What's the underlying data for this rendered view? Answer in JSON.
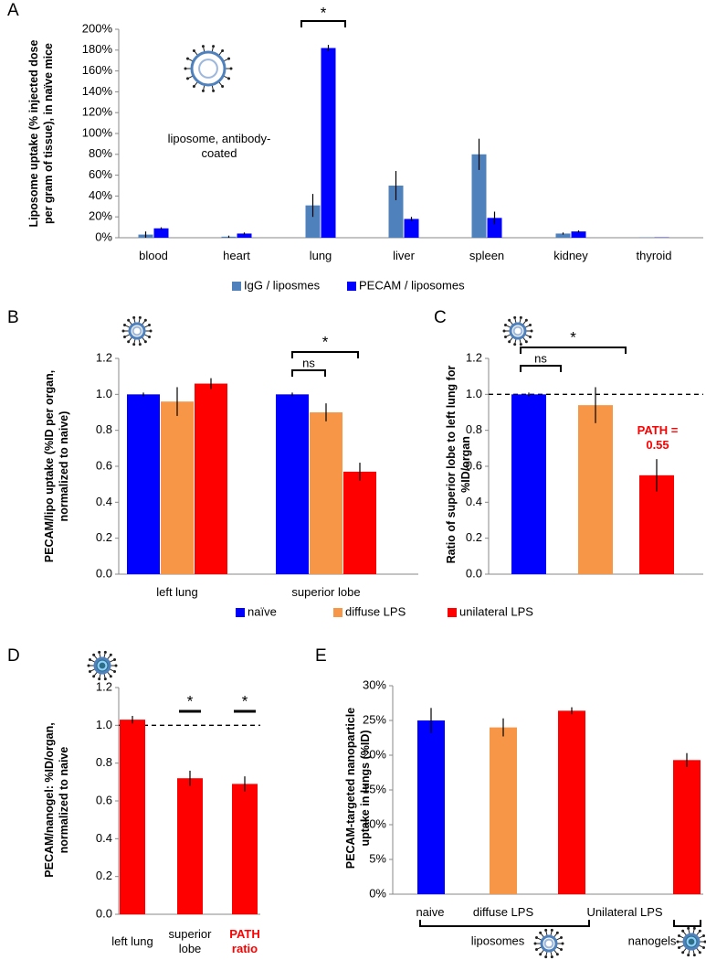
{
  "chart_data": [
    {
      "type": "bar",
      "label": "A",
      "ylabel": "Liposome uptake (% injected dose per gram of tissue), in naïve mice",
      "categories": [
        "blood",
        "heart",
        "lung",
        "liver",
        "spleen",
        "kidney",
        "thyroid"
      ],
      "series": [
        {
          "name": "IgG / liposmes",
          "color": "#4f81bd",
          "values": [
            3,
            1,
            31,
            50,
            80,
            4,
            0.3
          ],
          "errors": [
            3,
            1,
            11,
            14,
            15,
            1,
            0
          ]
        },
        {
          "name": "PECAM / liposomes",
          "color": "#0000ff",
          "values": [
            9,
            4,
            182,
            18,
            19,
            6,
            0.3
          ],
          "errors": [
            1,
            1,
            3,
            2,
            6,
            1,
            0
          ]
        }
      ],
      "ylim": [
        0,
        200
      ],
      "yticks": [
        {
          "value": 0,
          "label": "0%"
        },
        {
          "value": 20,
          "label": "20%"
        },
        {
          "value": 40,
          "label": "40%"
        },
        {
          "value": 60,
          "label": "60%"
        },
        {
          "value": 80,
          "label": "80%"
        },
        {
          "value": 100,
          "label": "100%"
        },
        {
          "value": 120,
          "label": "120%"
        },
        {
          "value": 140,
          "label": "140%"
        },
        {
          "value": 160,
          "label": "160%"
        },
        {
          "value": 180,
          "label": "180%"
        },
        {
          "value": 200,
          "label": "200%"
        }
      ],
      "significance": [
        "*"
      ],
      "icon_caption": "liposome, antibody-coated"
    },
    {
      "type": "bar",
      "label": "B",
      "ylabel": "PECAM/lipo uptake (%ID per organ, normalized to naive)",
      "categories": [
        "left lung",
        "superior lobe"
      ],
      "series": [
        {
          "name": "naïve",
          "color": "#0000ff",
          "values": [
            1.0,
            1.0
          ],
          "errors": [
            0.01,
            0.01
          ]
        },
        {
          "name": "diffuse LPS",
          "color": "#f79646",
          "values": [
            0.96,
            0.9
          ],
          "errors": [
            0.08,
            0.05
          ]
        },
        {
          "name": "unilateral LPS",
          "color": "#ff0000",
          "values": [
            1.06,
            0.57
          ],
          "errors": [
            0.03,
            0.05
          ]
        }
      ],
      "ylim": [
        0,
        1.2
      ],
      "yticks": [
        {
          "value": 0,
          "label": "0.0"
        },
        {
          "value": 0.2,
          "label": "0.2"
        },
        {
          "value": 0.4,
          "label": "0.4"
        },
        {
          "value": 0.6,
          "label": "0.6"
        },
        {
          "value": 0.8,
          "label": "0.8"
        },
        {
          "value": 1,
          "label": "1.0"
        },
        {
          "value": 1.2,
          "label": "1.2"
        }
      ],
      "significance": [
        "*",
        "ns"
      ]
    },
    {
      "type": "bar",
      "label": "C",
      "ylabel": "Ratio of superior lobe to left lung for %ID/organ",
      "categories": [
        null,
        null,
        null
      ],
      "values": [
        1.0,
        0.94,
        0.55
      ],
      "errors": [
        0.01,
        0.1,
        0.09
      ],
      "colors": [
        "#0000ff",
        "#f79646",
        "#ff0000"
      ],
      "refline": 1.0,
      "ylim": [
        0,
        1.2
      ],
      "yticks": [
        {
          "value": 0,
          "label": "0.0"
        },
        {
          "value": 0.2,
          "label": "0.2"
        },
        {
          "value": 0.4,
          "label": "0.4"
        },
        {
          "value": 0.6,
          "label": "0.6"
        },
        {
          "value": 0.8,
          "label": "0.8"
        },
        {
          "value": 1,
          "label": "1.0"
        },
        {
          "value": 1.2,
          "label": "1.2"
        }
      ],
      "significance": [
        "*",
        "ns"
      ],
      "annotation": "PATH = 0.55"
    },
    {
      "type": "bar",
      "label": "D",
      "ylabel": "PECAM/nanogel: %ID/organ, normalized to naive",
      "categories": [
        "left lung",
        "superior lobe",
        "PATH ratio"
      ],
      "values": [
        1.03,
        0.72,
        0.69
      ],
      "errors": [
        0.02,
        0.04,
        0.04
      ],
      "colors": [
        "#ff0000",
        "#ff0000",
        "#ff0000"
      ],
      "refline": 1.0,
      "ylim": [
        0,
        1.2
      ],
      "yticks": [
        {
          "value": 0,
          "label": "0.0"
        },
        {
          "value": 0.2,
          "label": "0.2"
        },
        {
          "value": 0.4,
          "label": "0.4"
        },
        {
          "value": 0.6,
          "label": "0.6"
        },
        {
          "value": 0.8,
          "label": "0.8"
        },
        {
          "value": 1,
          "label": "1.0"
        },
        {
          "value": 1.2,
          "label": "1.2"
        }
      ],
      "significance": [
        "*",
        "*"
      ]
    },
    {
      "type": "bar",
      "label": "E",
      "ylabel": "PECAM-targeted nanoparticle uptake in lungs (%ID)",
      "categories": [
        "naive",
        "diffuse LPS",
        "Unilateral LPS",
        null
      ],
      "values": [
        25,
        24,
        26.4,
        19.3
      ],
      "errors": [
        1.8,
        1.3,
        0.5,
        1
      ],
      "colors": [
        "#0000ff",
        "#f79646",
        "#ff0000",
        "#ff0000"
      ],
      "ylim": [
        0,
        30
      ],
      "yticks": [
        {
          "value": 0,
          "label": "0%"
        },
        {
          "value": 5,
          "label": "5%"
        },
        {
          "value": 10,
          "label": "10%"
        },
        {
          "value": 15,
          "label": "15%"
        },
        {
          "value": 20,
          "label": "20%"
        },
        {
          "value": 25,
          "label": "25%"
        },
        {
          "value": 30,
          "label": "30%"
        }
      ],
      "group_labels": [
        "liposomes",
        "nanogels"
      ]
    }
  ]
}
